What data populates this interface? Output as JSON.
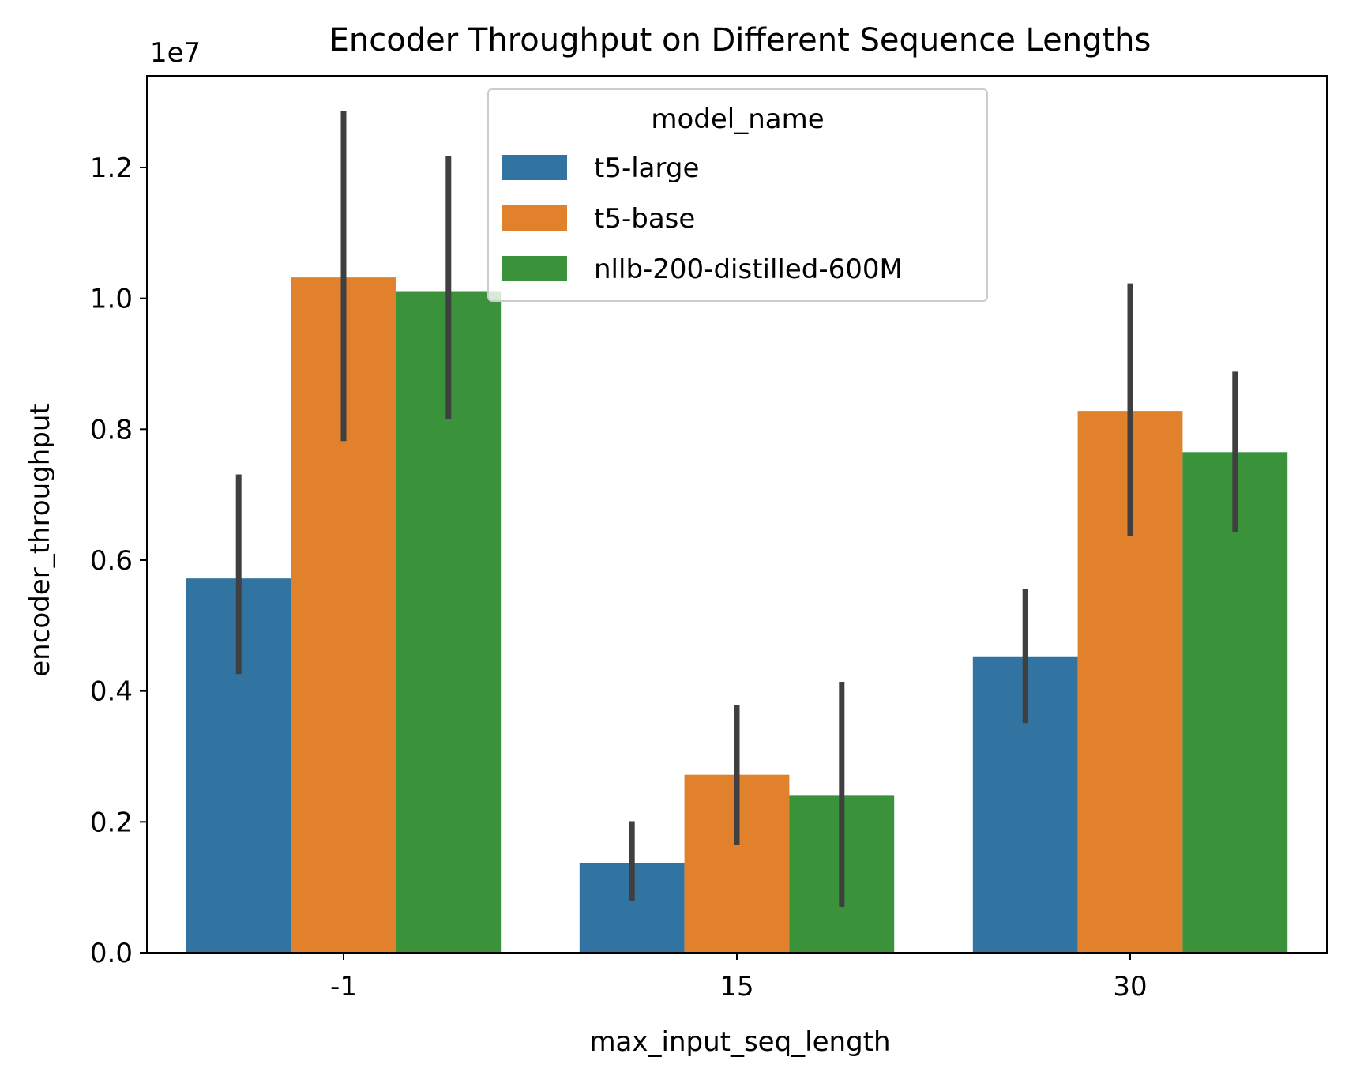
{
  "chart_data": {
    "type": "bar",
    "title": "Encoder Throughput on Different Sequence Lengths",
    "xlabel": "max_input_seq_length",
    "ylabel": "encoder_throughput",
    "y_offset_label": "1e7",
    "y_scale_factor": 10000000,
    "categories": [
      "-1",
      "15",
      "30"
    ],
    "ylim": [
      0,
      13400000
    ],
    "y_ticks": [
      0,
      2000000,
      4000000,
      6000000,
      8000000,
      10000000,
      12000000
    ],
    "y_tick_labels": [
      "0.0",
      "0.2",
      "0.4",
      "0.6",
      "0.8",
      "1.0",
      "1.2"
    ],
    "grid": false,
    "legend": {
      "title": "model_name",
      "placement": "top-center"
    },
    "series": [
      {
        "name": "t5-large",
        "color": "#3274a1",
        "values": [
          5720000,
          1370000,
          4530000
        ],
        "error_low": [
          4260000,
          790000,
          3510000
        ],
        "error_high": [
          7310000,
          2010000,
          5560000
        ]
      },
      {
        "name": "t5-base",
        "color": "#e1812c",
        "values": [
          10320000,
          2720000,
          8280000
        ],
        "error_low": [
          7820000,
          1650000,
          6370000
        ],
        "error_high": [
          12860000,
          3790000,
          10230000
        ]
      },
      {
        "name": "nllb-200-distilled-600M",
        "color": "#3a923a",
        "values": [
          10110000,
          2410000,
          7650000
        ],
        "error_low": [
          8160000,
          700000,
          6430000
        ],
        "error_high": [
          12180000,
          4140000,
          8880000
        ]
      }
    ],
    "error_bar_color": "#3f3f3f"
  }
}
